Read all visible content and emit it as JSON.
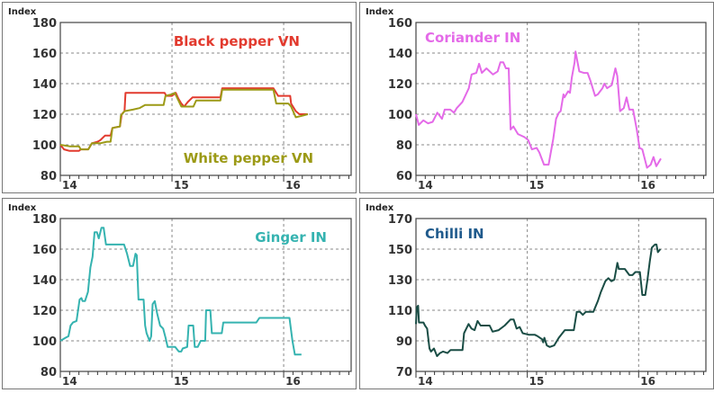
{
  "chart_data": [
    {
      "type": "line",
      "ylabel": "Index",
      "ylim": [
        80,
        180
      ],
      "yticks": [
        80,
        100,
        120,
        140,
        160,
        180
      ],
      "xlim": [
        0,
        31.25
      ],
      "x_units": "months since start of 2014",
      "xticks": [
        {
          "x": 0,
          "label": "14"
        },
        {
          "x": 12,
          "label": "15"
        },
        {
          "x": 24,
          "label": "16"
        }
      ],
      "grid": true,
      "series": [
        {
          "name": "Black pepper VN",
          "color": "#e23a2e",
          "label_pos": "top-right",
          "x": [
            0,
            0.4,
            1.0,
            2.0,
            2.2,
            3.0,
            3.4,
            4.0,
            4.3,
            4.8,
            5.4,
            5.6,
            6.4,
            6.6,
            6.9,
            7.0,
            11.2,
            11.4,
            12.0,
            12.4,
            12.7,
            13.0,
            13.3,
            13.7,
            14.2,
            17.2,
            17.4,
            22.9,
            23.4,
            24.7,
            24.8,
            25.3,
            25.7,
            26.6
          ],
          "y": [
            100,
            97,
            96,
            96,
            97,
            97,
            101,
            102,
            103,
            106,
            106,
            111,
            112,
            120,
            122,
            134,
            134,
            132,
            132,
            134,
            130,
            127,
            125,
            128,
            131,
            131,
            137,
            137,
            132,
            132,
            127,
            122,
            120,
            120
          ]
        },
        {
          "name": "White pepper VN",
          "color": "#9c9a16",
          "label_pos": "bottom-right",
          "x": [
            0,
            1.0,
            2.0,
            2.2,
            3.0,
            3.4,
            4.3,
            5.0,
            5.4,
            5.6,
            6.4,
            6.5,
            6.9,
            7.8,
            8.5,
            9.1,
            11.1,
            11.3,
            12.0,
            12.3,
            13.0,
            14.3,
            14.6,
            17.2,
            17.4,
            22.9,
            23.2,
            24.5,
            24.8,
            25.3,
            26.0,
            26.6
          ],
          "y": [
            100,
            99,
            99,
            97,
            97,
            101,
            101,
            102,
            102,
            111,
            112,
            119,
            122,
            123,
            124,
            126,
            126,
            132,
            133,
            134,
            125,
            125,
            129,
            129,
            136,
            136,
            127,
            127,
            125,
            118,
            119,
            120
          ]
        }
      ]
    },
    {
      "type": "line",
      "ylabel": "Index",
      "ylim": [
        60,
        160
      ],
      "yticks": [
        60,
        80,
        100,
        120,
        140,
        160
      ],
      "xlim": [
        0,
        31.25
      ],
      "x_units": "months since start of 2014",
      "xticks": [
        {
          "x": 0,
          "label": "14"
        },
        {
          "x": 12,
          "label": "15"
        },
        {
          "x": 24,
          "label": "16"
        }
      ],
      "grid": true,
      "series": [
        {
          "name": "Coriander IN",
          "color": "#e46ae8",
          "label_pos": "top-left",
          "x": [
            0,
            0.3,
            0.8,
            1.3,
            1.8,
            2.3,
            2.8,
            3.1,
            3.7,
            4.1,
            4.4,
            5.0,
            5.7,
            6.0,
            6.5,
            6.8,
            7.1,
            7.6,
            8.3,
            8.8,
            9.1,
            9.4,
            9.7,
            10.0,
            10.1,
            10.2,
            10.5,
            11.0,
            11.7,
            12.1,
            12.5,
            13.0,
            13.3,
            13.8,
            14.3,
            14.8,
            15.1,
            15.4,
            15.6,
            15.9,
            16.0,
            16.4,
            16.6,
            16.8,
            17.1,
            17.2,
            17.6,
            18.1,
            18.5,
            18.8,
            19.3,
            19.6,
            20.1,
            20.3,
            20.6,
            21.1,
            21.5,
            21.7,
            22.0,
            22.4,
            22.7,
            23.0,
            23.4,
            23.8,
            24.1,
            24.4,
            24.9,
            25.3,
            25.6,
            25.9,
            26.4
          ],
          "y": [
            100,
            93,
            96,
            94,
            95,
            101,
            97,
            103,
            103,
            101,
            104,
            108,
            117,
            126,
            127,
            133,
            127,
            130,
            126,
            128,
            134,
            134,
            130,
            130,
            109,
            90,
            92,
            87,
            85,
            83,
            77,
            78,
            75,
            67,
            67,
            84,
            97,
            101,
            102,
            113,
            111,
            115,
            114,
            124,
            134,
            141,
            128,
            127,
            127,
            122,
            112,
            113,
            117,
            120,
            117,
            119,
            130,
            125,
            102,
            104,
            111,
            103,
            103,
            90,
            78,
            77,
            65,
            67,
            72,
            66,
            71
          ]
        }
      ]
    },
    {
      "type": "line",
      "ylabel": "Index",
      "ylim": [
        80,
        180
      ],
      "yticks": [
        80,
        100,
        120,
        140,
        160,
        180
      ],
      "xlim": [
        0,
        31.25
      ],
      "x_units": "months since start of 2014",
      "xticks": [
        {
          "x": 0,
          "label": "14"
        },
        {
          "x": 12,
          "label": "15"
        },
        {
          "x": 24,
          "label": "16"
        }
      ],
      "grid": true,
      "series": [
        {
          "name": "Ginger IN",
          "color": "#35b3b0",
          "label_pos": "top-right",
          "x": [
            0,
            0.55,
            0.87,
            1.1,
            1.35,
            1.74,
            2.07,
            2.26,
            2.39,
            2.65,
            2.97,
            3.23,
            3.46,
            3.68,
            3.94,
            4.13,
            4.42,
            4.65,
            4.91,
            6.85,
            7.17,
            7.5,
            7.82,
            8.08,
            8.21,
            8.4,
            8.95,
            9.11,
            9.27,
            9.59,
            9.76,
            9.92,
            10.15,
            10.4,
            10.72,
            11.05,
            11.31,
            11.53,
            12.34,
            12.73,
            12.99,
            13.15,
            13.63,
            13.79,
            14.28,
            14.44,
            14.76,
            15.08,
            15.57,
            15.66,
            16.12,
            16.28,
            17.35,
            17.51,
            21.06,
            21.39,
            24.62,
            24.94,
            25.2,
            25.91
          ],
          "y": [
            100,
            102,
            103,
            110,
            112,
            113,
            127,
            128,
            126,
            126,
            132,
            148,
            155,
            171,
            171,
            167,
            174,
            174,
            163,
            163,
            157,
            149,
            149,
            157,
            156,
            127,
            127,
            110,
            105,
            100,
            103,
            124,
            126,
            118,
            110,
            108,
            102,
            96,
            96,
            93,
            93,
            95,
            96,
            110,
            110,
            96,
            96,
            100,
            100,
            120,
            120,
            105,
            105,
            112,
            112,
            115,
            115,
            100,
            91,
            91
          ]
        }
      ]
    },
    {
      "type": "line",
      "ylabel": "Index",
      "ylim": [
        70,
        170
      ],
      "yticks": [
        70,
        90,
        110,
        130,
        150,
        170
      ],
      "xlim": [
        0,
        31.25
      ],
      "x_units": "months since start of 2014",
      "xticks": [
        {
          "x": 0,
          "label": "14"
        },
        {
          "x": 12,
          "label": "15"
        },
        {
          "x": 24,
          "label": "16"
        }
      ],
      "grid": true,
      "series": [
        {
          "name": "Chilli IN",
          "color": "#1a4d45",
          "label_color": "#1f5a8c",
          "label_pos": "top-left",
          "x": [
            0,
            0.1,
            0.23,
            0.32,
            0.81,
            0.97,
            1.2,
            1.46,
            1.62,
            1.94,
            2.27,
            2.59,
            2.92,
            3.4,
            3.73,
            4.37,
            5.02,
            5.18,
            5.67,
            5.99,
            6.32,
            6.64,
            6.97,
            7.94,
            8.26,
            8.91,
            9.56,
            10.2,
            10.53,
            10.85,
            11.18,
            11.5,
            12.15,
            12.8,
            13.12,
            13.61,
            13.71,
            13.84,
            14.1,
            14.42,
            14.9,
            15.39,
            16.04,
            17.01,
            17.33,
            17.66,
            17.98,
            18.31,
            19.12,
            19.6,
            19.93,
            20.41,
            20.74,
            21.06,
            21.38,
            21.71,
            21.87,
            22.52,
            23.0,
            23.33,
            23.65,
            24.14,
            24.4,
            24.72,
            24.95,
            25.2,
            25.43,
            25.76,
            25.92,
            26.08,
            26.34
          ],
          "y": [
            101,
            112,
            113,
            102,
            102,
            100,
            98,
            85,
            83,
            85,
            80,
            82,
            83,
            82,
            84,
            84,
            84,
            95,
            101,
            98,
            97,
            103,
            100,
            100,
            96,
            97,
            100,
            104,
            104,
            98,
            99,
            95,
            94,
            94,
            93,
            91,
            89,
            92,
            87,
            86,
            87,
            92,
            97,
            97,
            109,
            109,
            107,
            109,
            109,
            116,
            122,
            129,
            131,
            129,
            130,
            141,
            137,
            137,
            133,
            133,
            135,
            135,
            120,
            120,
            130,
            142,
            151,
            153,
            153,
            148,
            150
          ]
        }
      ]
    }
  ]
}
